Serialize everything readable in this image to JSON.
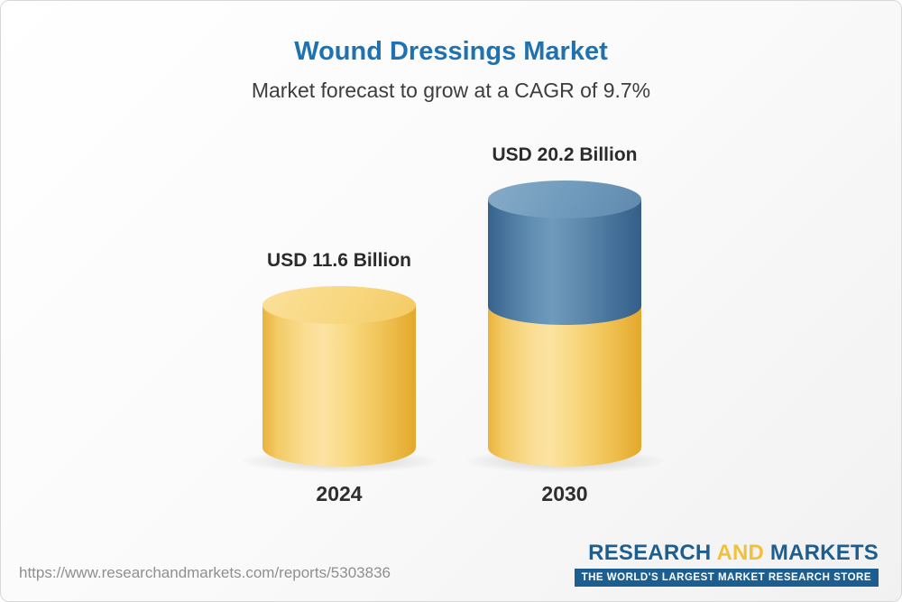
{
  "page": {
    "source_url": "https://www.researchandmarkets.com/reports/5303836"
  },
  "logo": {
    "word1": "RESEARCH",
    "word2": "AND",
    "word3": "MARKETS",
    "tagline": "THE WORLD'S LARGEST MARKET RESEARCH STORE"
  },
  "chart_data": {
    "type": "bar",
    "variant": "3d-cylinder",
    "title": "Wound Dressings Market",
    "subtitle": "Market forecast to grow at a CAGR of 9.7%",
    "cagr_percent": 9.7,
    "unit": "USD Billion",
    "categories": [
      "2024",
      "2030"
    ],
    "values": [
      11.6,
      20.2
    ],
    "value_labels": [
      "USD 11.6 Billion",
      "USD 20.2 Billion"
    ],
    "series_note": "2030 cylinder shows the 2024 base value in yellow with the incremental growth segment in blue",
    "colors": {
      "base_segment": "#F3CB66",
      "growth_segment": "#5D88AC",
      "title": "#1E72B1"
    },
    "legend": false,
    "axes": false
  }
}
